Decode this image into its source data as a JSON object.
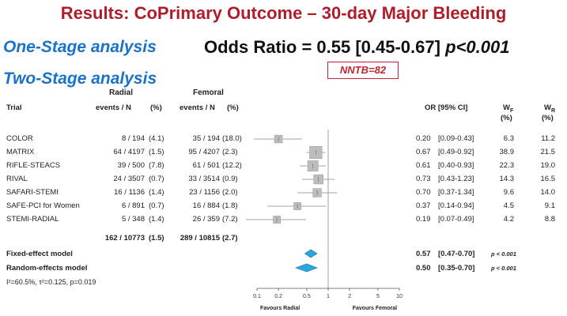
{
  "title": "Results: CoPrimary Outcome – 30-day Major Bleeding",
  "one_stage": {
    "label": "One-Stage analysis",
    "odds_text": "Odds Ratio = 0.55 [0.45-0.67]",
    "p_text": "p<0.001"
  },
  "two_stage": {
    "label": "Two-Stage analysis"
  },
  "nntb": "NNTB=82",
  "headers": {
    "radial_group": "Radial",
    "femoral_group": "Femoral",
    "trial": "Trial",
    "events_radial": "events / N",
    "pct_radial": "(%)",
    "events_femoral": "events / N",
    "pct_femoral": "(%)",
    "or_ci": "OR  [95% CI]",
    "wf": "W",
    "wf_sub": "F",
    "wf_pct": "(%)",
    "wr": "W",
    "wr_sub": "R",
    "wr_pct": "(%)"
  },
  "trials": [
    {
      "name": "COLOR",
      "radial": "8 / 194",
      "radial_pct": "(4.1)",
      "femoral": "35 / 194",
      "femoral_pct": "(18.0)",
      "or": "0.20",
      "ci": "[0.09-0.43]",
      "wf": "6.3",
      "wr": "11.2"
    },
    {
      "name": "MATRIX",
      "radial": "64 / 4197",
      "radial_pct": "(1.5)",
      "femoral": "95 / 4207",
      "femoral_pct": "(2.3)",
      "or": "0.67",
      "ci": "[0.49-0.92]",
      "wf": "38.9",
      "wr": "21.5"
    },
    {
      "name": "RIFLE-STEACS",
      "radial": "39 / 500",
      "radial_pct": "(7.8)",
      "femoral": "61 / 501",
      "femoral_pct": "(12.2)",
      "or": "0.61",
      "ci": "[0.40-0.93]",
      "wf": "22.3",
      "wr": "19.0"
    },
    {
      "name": "RIVAL",
      "radial": "24 / 3507",
      "radial_pct": "(0.7)",
      "femoral": "33 / 3514",
      "femoral_pct": "(0.9)",
      "or": "0.73",
      "ci": "[0.43-1.23]",
      "wf": "14.3",
      "wr": "16.5"
    },
    {
      "name": "SAFARI-STEMI",
      "radial": "16 / 1136",
      "radial_pct": "(1.4)",
      "femoral": "23 / 1156",
      "femoral_pct": "(2.0)",
      "or": "0.70",
      "ci": "[0.37-1.34]",
      "wf": "9.6",
      "wr": "14.0"
    },
    {
      "name": "SAFE-PCI for Women",
      "radial": "6 / 891",
      "radial_pct": "(0.7)",
      "femoral": "16 / 884",
      "femoral_pct": "(1.8)",
      "or": "0.37",
      "ci": "[0.14-0.94]",
      "wf": "4.5",
      "wr": "9.1"
    },
    {
      "name": "STEMI-RADIAL",
      "radial": "5 / 348",
      "radial_pct": "(1.4)",
      "femoral": "26 / 359",
      "femoral_pct": "(7.2)",
      "or": "0.19",
      "ci": "[0.07-0.49]",
      "wf": "4.2",
      "wr": "8.8"
    }
  ],
  "totals": {
    "radial": "162 / 10773",
    "radial_pct": "(1.5)",
    "femoral": "289 / 10815",
    "femoral_pct": "(2.7)"
  },
  "pooled": [
    {
      "name": "Fixed-effect model",
      "or": "0.57",
      "ci": "[0.47-0.70]",
      "p": "p < 0.001"
    },
    {
      "name": "Random-effects model",
      "or": "0.50",
      "ci": "[0.35-0.70]",
      "p": "p < 0.001"
    }
  ],
  "heterogeneity": "I²=60.5%, τ²=0.125, p=0.019",
  "chart_data": {
    "type": "forest",
    "x_scale": "log",
    "xlim": [
      0.1,
      10
    ],
    "ticks": [
      0.1,
      0.2,
      0.5,
      1,
      2,
      5,
      10
    ],
    "tick_labels": [
      "0.1",
      "0.2",
      "0.5",
      "1",
      "2",
      "5",
      "10"
    ],
    "favours_left": "Favours Radial",
    "favours_right": "Favours Femoral",
    "trials": [
      {
        "name": "COLOR",
        "or": 0.2,
        "lo": 0.09,
        "hi": 0.43,
        "weight": 6.3
      },
      {
        "name": "MATRIX",
        "or": 0.67,
        "lo": 0.49,
        "hi": 0.92,
        "weight": 38.9
      },
      {
        "name": "RIFLE-STEACS",
        "or": 0.61,
        "lo": 0.4,
        "hi": 0.93,
        "weight": 22.3
      },
      {
        "name": "RIVAL",
        "or": 0.73,
        "lo": 0.43,
        "hi": 1.23,
        "weight": 14.3
      },
      {
        "name": "SAFARI-STEMI",
        "or": 0.7,
        "lo": 0.37,
        "hi": 1.34,
        "weight": 9.6
      },
      {
        "name": "SAFE-PCI for Women",
        "or": 0.37,
        "lo": 0.14,
        "hi": 0.94,
        "weight": 4.5
      },
      {
        "name": "STEMI-RADIAL",
        "or": 0.19,
        "lo": 0.07,
        "hi": 0.49,
        "weight": 4.2
      }
    ],
    "pooled": [
      {
        "name": "Fixed-effect model",
        "or": 0.57,
        "lo": 0.47,
        "hi": 0.7
      },
      {
        "name": "Random-effects model",
        "or": 0.5,
        "lo": 0.35,
        "hi": 0.7
      }
    ],
    "colors": {
      "box": "#bdbdbd",
      "box_border": "#999999",
      "diamond": "#29a8e0",
      "diamond_border": "#1a6f9a",
      "ref_line": "#888888"
    }
  }
}
